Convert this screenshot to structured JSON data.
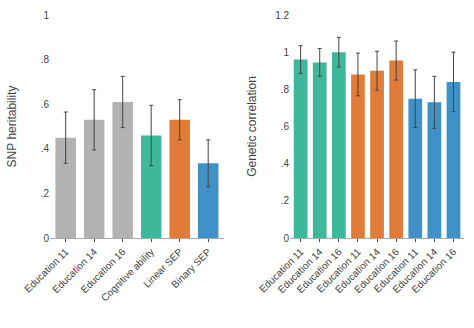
{
  "chart_data": [
    {
      "type": "bar",
      "categories": [
        "Education 11",
        "Education 14",
        "Education 16",
        "Cognitive ability",
        "Linear SEP",
        "Binary SEP"
      ],
      "values": [
        0.45,
        0.53,
        0.61,
        0.46,
        0.53,
        0.335
      ],
      "errors": [
        0.115,
        0.135,
        0.115,
        0.135,
        0.09,
        0.105
      ],
      "colors": [
        "#b2b2b2",
        "#b2b2b2",
        "#b2b2b2",
        "#3db89a",
        "#e07c38",
        "#4191c9"
      ],
      "ylabel": "SNP heritability",
      "ylim": [
        0,
        1.0
      ],
      "yticks": [
        0,
        {
          "value": 0.2,
          "label": ".2"
        },
        {
          "value": 0.4,
          "label": ".4"
        },
        {
          "value": 0.6,
          "label": ".6"
        },
        {
          "value": 0.8,
          "label": ".8"
        },
        1
      ],
      "grid": false
    },
    {
      "type": "bar",
      "categories": [
        "Education 11",
        "Education 14",
        "Education 16",
        "Education 11",
        "Education 14",
        "Education 16",
        "Education 11",
        "Education 14",
        "Education 16"
      ],
      "values": [
        0.96,
        0.945,
        1.0,
        0.88,
        0.9,
        0.955,
        0.75,
        0.73,
        0.84
      ],
      "errors": [
        0.075,
        0.075,
        0.08,
        0.115,
        0.105,
        0.105,
        0.155,
        0.14,
        0.16
      ],
      "colors": [
        "#3db89a",
        "#3db89a",
        "#3db89a",
        "#e07c38",
        "#e07c38",
        "#e07c38",
        "#4191c9",
        "#4191c9",
        "#4191c9"
      ],
      "ylabel": "Genetic correlation",
      "ylim": [
        0,
        1.2
      ],
      "yticks": [
        0,
        {
          "value": 0.2,
          "label": ".2"
        },
        {
          "value": 0.4,
          "label": ".4"
        },
        {
          "value": 0.6,
          "label": ".6"
        },
        {
          "value": 0.8,
          "label": ".8"
        },
        1,
        1.2
      ],
      "grid": false
    }
  ]
}
